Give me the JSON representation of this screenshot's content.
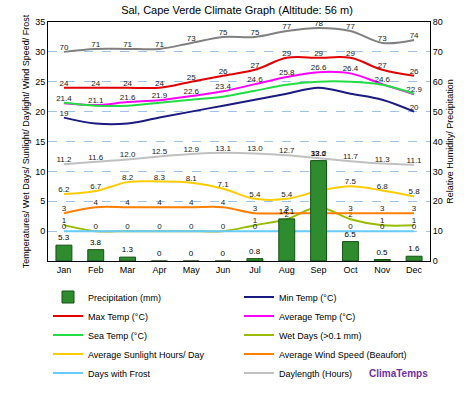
{
  "chart_data": {
    "type": "line",
    "title": "Sal, Cape Verde Climate Graph (Altitude: 56 m)",
    "categories": [
      "Jan",
      "Feb",
      "Mar",
      "Apr",
      "May",
      "Jun",
      "Jul",
      "Aug",
      "Sep",
      "Oct",
      "Nov",
      "Dec"
    ],
    "ylabel": "Temperatures/ Wet Days/ Sunlight/ Daylight/ Wind Speed/ Frost",
    "y2label": "Relative Humidity/ Precipitation",
    "ylim": [
      -5,
      35
    ],
    "yticks": [
      0,
      5,
      10,
      15,
      20,
      25,
      30,
      35
    ],
    "y2lim": [
      0,
      80
    ],
    "y2ticks": [
      0,
      10,
      20,
      30,
      40,
      50,
      60,
      70,
      80
    ],
    "grid": true,
    "legend": "bottom",
    "annotations": [
      "ClimaTemps"
    ],
    "series": [
      {
        "name": "Precipitation (mm)",
        "type": "bar",
        "axis": "y2",
        "color": "#2e8b2e",
        "data_labels": true,
        "values": [
          5.3,
          3.8,
          1.3,
          0,
          0,
          0,
          0.8,
          14.1,
          33.6,
          6.5,
          0.5,
          1.6
        ]
      },
      {
        "name": "Min Temp (°C)",
        "type": "line",
        "color": "#1a1a80",
        "marker": "none",
        "line_style": "solid",
        "data_labels": true,
        "values": [
          19,
          18,
          18,
          19,
          20,
          21,
          22,
          23,
          24,
          23,
          22,
          20
        ],
        "value_labels": [
          "19",
          null,
          null,
          null,
          null,
          null,
          null,
          null,
          null,
          null,
          null,
          "20"
        ]
      },
      {
        "name": "Max Temp (°C)",
        "type": "line",
        "color": "#e00000",
        "marker": "none",
        "line_style": "solid",
        "data_labels": true,
        "values": [
          24,
          24,
          24,
          24,
          25,
          26,
          27,
          29,
          29,
          29,
          27,
          26
        ]
      },
      {
        "name": "Average Temp (°C)",
        "type": "line",
        "color": "#ff00ff",
        "marker": "none",
        "line_style": "solid",
        "data_labels": true,
        "values": [
          21.4,
          21.1,
          21.6,
          21.9,
          22.6,
          23.4,
          24.6,
          25.8,
          26.6,
          26.4,
          24.6,
          22.9
        ]
      },
      {
        "name": "Sea Temp (°C)",
        "type": "line",
        "color": "#22dd44",
        "marker": "none",
        "line_style": "solid",
        "data_labels": false,
        "values": [
          21.5,
          21,
          21,
          21.5,
          22,
          22.5,
          23.5,
          24.5,
          25,
          25,
          24.5,
          23
        ]
      },
      {
        "name": "Wet Days (>0.1 mm)",
        "type": "line",
        "color": "#99bb00",
        "marker": "none",
        "line_style": "solid",
        "data_labels": true,
        "values": [
          1,
          0,
          0,
          0,
          0,
          0,
          1,
          2,
          4,
          2,
          1,
          1
        ],
        "value_labels": [
          "1",
          null,
          null,
          null,
          null,
          null,
          "1",
          "2",
          "4",
          "2",
          "1",
          "1"
        ]
      },
      {
        "name": "Average Sunlight Hours/ Day",
        "type": "line",
        "color": "#ffcc00",
        "marker": "none",
        "line_style": "solid",
        "data_labels": true,
        "values": [
          6.2,
          6.7,
          8.2,
          8.3,
          8.1,
          7.1,
          5.4,
          5.4,
          6.7,
          7.5,
          6.8,
          5.8
        ]
      },
      {
        "name": "Average Wind Speed (Beaufort)",
        "type": "line",
        "color": "#ff7f00",
        "marker": "none",
        "line_style": "solid",
        "data_labels": true,
        "values": [
          3,
          4,
          4,
          4,
          4,
          4,
          3,
          3,
          3,
          3,
          3,
          3
        ]
      },
      {
        "name": "Days with Frost",
        "type": "line",
        "color": "#66ccff",
        "marker": "none",
        "line_style": "solid",
        "data_labels": true,
        "values": [
          0,
          0,
          0,
          0,
          0,
          0,
          0,
          0,
          0,
          0,
          0,
          0
        ]
      },
      {
        "name": "Daylength (Hours)",
        "type": "line",
        "color": "#c0c0c0",
        "marker": "none",
        "line_style": "solid",
        "data_labels": true,
        "values": [
          11.2,
          11.6,
          12.0,
          12.5,
          12.9,
          13.1,
          13.0,
          12.7,
          12.2,
          11.7,
          11.3,
          11.1
        ],
        "value_labels": [
          "11.2",
          "11.6",
          "12.0",
          "12.5",
          "12.9",
          "13.1",
          "13.0",
          "12.7",
          "12.2",
          "11.7",
          "11.3",
          "11.1"
        ]
      },
      {
        "type": "line",
        "axis": "y2",
        "color": "#808080",
        "marker": "none",
        "line_style": "solid",
        "data_labels": true,
        "values": [
          70,
          71,
          71,
          71,
          73,
          75,
          75,
          77,
          78,
          77,
          73,
          74
        ]
      }
    ]
  }
}
